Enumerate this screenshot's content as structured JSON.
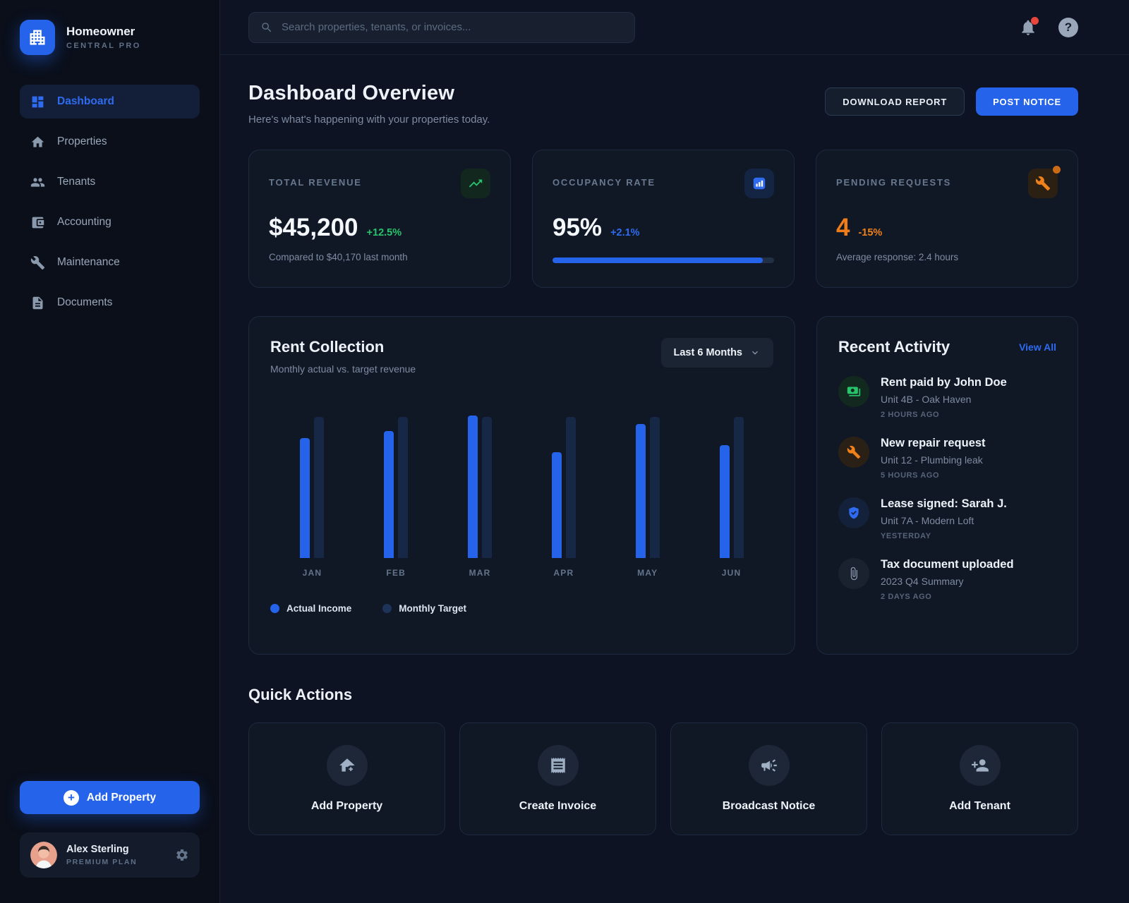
{
  "brand": {
    "name": "Homeowner",
    "subtitle": "CENTRAL PRO"
  },
  "search": {
    "placeholder": "Search properties, tenants, or invoices..."
  },
  "topbar": {
    "help_glyph": "?"
  },
  "sidebar": {
    "items": [
      {
        "label": "Dashboard",
        "icon": "dashboard-icon",
        "active": true
      },
      {
        "label": "Properties",
        "icon": "properties-icon",
        "active": false
      },
      {
        "label": "Tenants",
        "icon": "tenants-icon",
        "active": false
      },
      {
        "label": "Accounting",
        "icon": "accounting-icon",
        "active": false
      },
      {
        "label": "Maintenance",
        "icon": "maintenance-icon",
        "active": false
      },
      {
        "label": "Documents",
        "icon": "documents-icon",
        "active": false
      }
    ],
    "add_property_label": "Add Property"
  },
  "profile": {
    "name": "Alex Sterling",
    "plan": "PREMIUM PLAN"
  },
  "header": {
    "title": "Dashboard Overview",
    "subtitle": "Here's what's happening with your properties today.",
    "download_label": "DOWNLOAD REPORT",
    "post_label": "POST NOTICE"
  },
  "stats": {
    "revenue": {
      "label": "TOTAL REVENUE",
      "value": "$45,200",
      "delta": "+12.5%",
      "note": "Compared to $40,170 last month"
    },
    "occupancy": {
      "label": "OCCUPANCY RATE",
      "value": "95%",
      "delta": "+2.1%",
      "progress_pct": 95
    },
    "pending": {
      "label": "PENDING REQUESTS",
      "value": "4",
      "delta": "-15%",
      "note": "Average response: 2.4 hours"
    }
  },
  "chart_card": {
    "title": "Rent Collection",
    "subtitle": "Monthly actual vs. target revenue",
    "range_label": "Last 6 Months"
  },
  "chart_data": {
    "type": "bar",
    "title": "Rent Collection",
    "categories": [
      "JAN",
      "FEB",
      "MAR",
      "APR",
      "MAY",
      "JUN"
    ],
    "series": [
      {
        "name": "Actual Income",
        "values": [
          85,
          90,
          101,
          75,
          95,
          80
        ],
        "color": "#2563eb"
      },
      {
        "name": "Monthly Target",
        "values": [
          100,
          100,
          100,
          100,
          100,
          100
        ],
        "color": "#172846"
      }
    ],
    "unit": "percent of monthly target (estimated from bar heights)",
    "ylim": [
      0,
      110
    ],
    "grid": false,
    "legend_position": "bottom"
  },
  "activity": {
    "title": "Recent Activity",
    "view_all_label": "View All",
    "items": [
      {
        "icon": "money-icon",
        "tone": "green",
        "title": "Rent paid by John Doe",
        "subtitle": "Unit 4B - Oak Haven",
        "time": "2 HOURS AGO"
      },
      {
        "icon": "wrench-icon",
        "tone": "orange",
        "title": "New repair request",
        "subtitle": "Unit 12 - Plumbing leak",
        "time": "5 HOURS AGO"
      },
      {
        "icon": "shield-icon",
        "tone": "blue",
        "title": "Lease signed: Sarah J.",
        "subtitle": "Unit 7A - Modern Loft",
        "time": "YESTERDAY"
      },
      {
        "icon": "paperclip-icon",
        "tone": "gray",
        "title": "Tax document uploaded",
        "subtitle": "2023 Q4 Summary",
        "time": "2 DAYS AGO"
      }
    ]
  },
  "quick_actions": {
    "title": "Quick Actions",
    "items": [
      {
        "icon": "house-plus-icon",
        "label": "Add Property"
      },
      {
        "icon": "receipt-icon",
        "label": "Create Invoice"
      },
      {
        "icon": "megaphone-icon",
        "label": "Broadcast Notice"
      },
      {
        "icon": "person-plus-icon",
        "label": "Add Tenant"
      }
    ]
  },
  "colors": {
    "accent_blue": "#2563eb",
    "green": "#27c46c",
    "orange": "#f08019",
    "red": "#e8453c",
    "target_bar": "#172846"
  }
}
